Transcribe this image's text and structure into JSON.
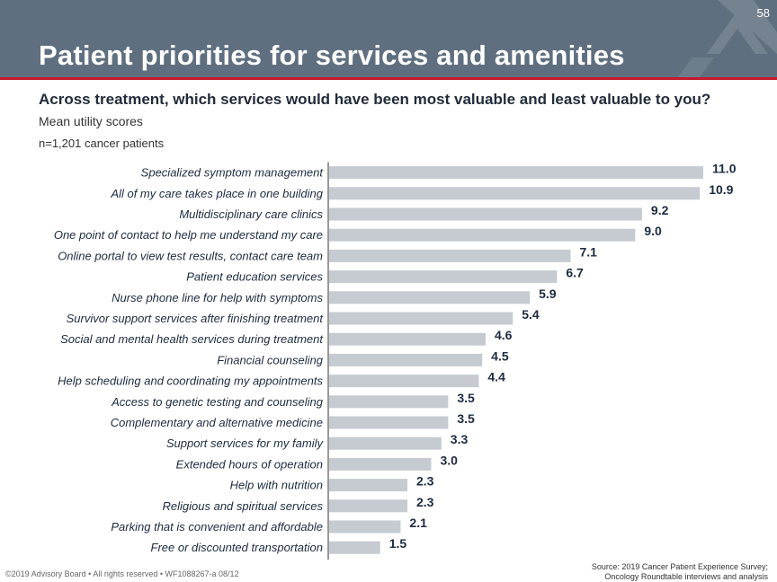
{
  "header": {
    "page_number": "58",
    "title": "Patient priorities for services and amenities"
  },
  "question": "Across treatment, which services would have been most valuable and least valuable to you?",
  "subtitle": "Mean utility scores",
  "sample": "n=1,201 cancer patients",
  "colors": {
    "header_bg": "#5f6f80",
    "accent_rule": "#c7192d",
    "bar": "#c5cbd1",
    "text_dark": "#1d2b3f"
  },
  "chart_data": {
    "type": "bar",
    "orientation": "horizontal",
    "categories": [
      "Specialized symptom management",
      "All of my care takes place in one building",
      "Multidisciplinary care clinics",
      "One point of contact to help me understand my care",
      "Online portal to view test results, contact care team",
      "Patient education services",
      "Nurse phone line for help with symptoms",
      "Survivor support services after finishing treatment",
      "Social and mental health services during treatment",
      "Financial counseling",
      "Help scheduling and coordinating my appointments",
      "Access to genetic testing and counseling",
      "Complementary and alternative medicine",
      "Support services for my family",
      "Extended hours of operation",
      "Help with nutrition",
      "Religious and spiritual services",
      "Parking that is convenient and affordable",
      "Free or discounted transportation"
    ],
    "values": [
      11.0,
      10.9,
      9.2,
      9.0,
      7.1,
      6.7,
      5.9,
      5.4,
      4.6,
      4.5,
      4.4,
      3.5,
      3.5,
      3.3,
      3.0,
      2.3,
      2.3,
      2.1,
      1.5
    ],
    "value_labels": [
      "11.0",
      "10.9",
      "9.2",
      "9.0",
      "7.1",
      "6.7",
      "5.9",
      "5.4",
      "4.6",
      "4.5",
      "4.4",
      "3.5",
      "3.5",
      "3.3",
      "3.0",
      "2.3",
      "2.3",
      "2.1",
      "1.5"
    ],
    "xlim": [
      0,
      11.0
    ],
    "grid": false,
    "legend": "none"
  },
  "footer": {
    "copyright": "©2019 Advisory Board • All rights reserved • WF1088267-a 08/12",
    "source_line1": "Source: 2019 Cancer Patient Experience Survey;",
    "source_line2": "Oncology Roundtable interviews and analysis"
  }
}
